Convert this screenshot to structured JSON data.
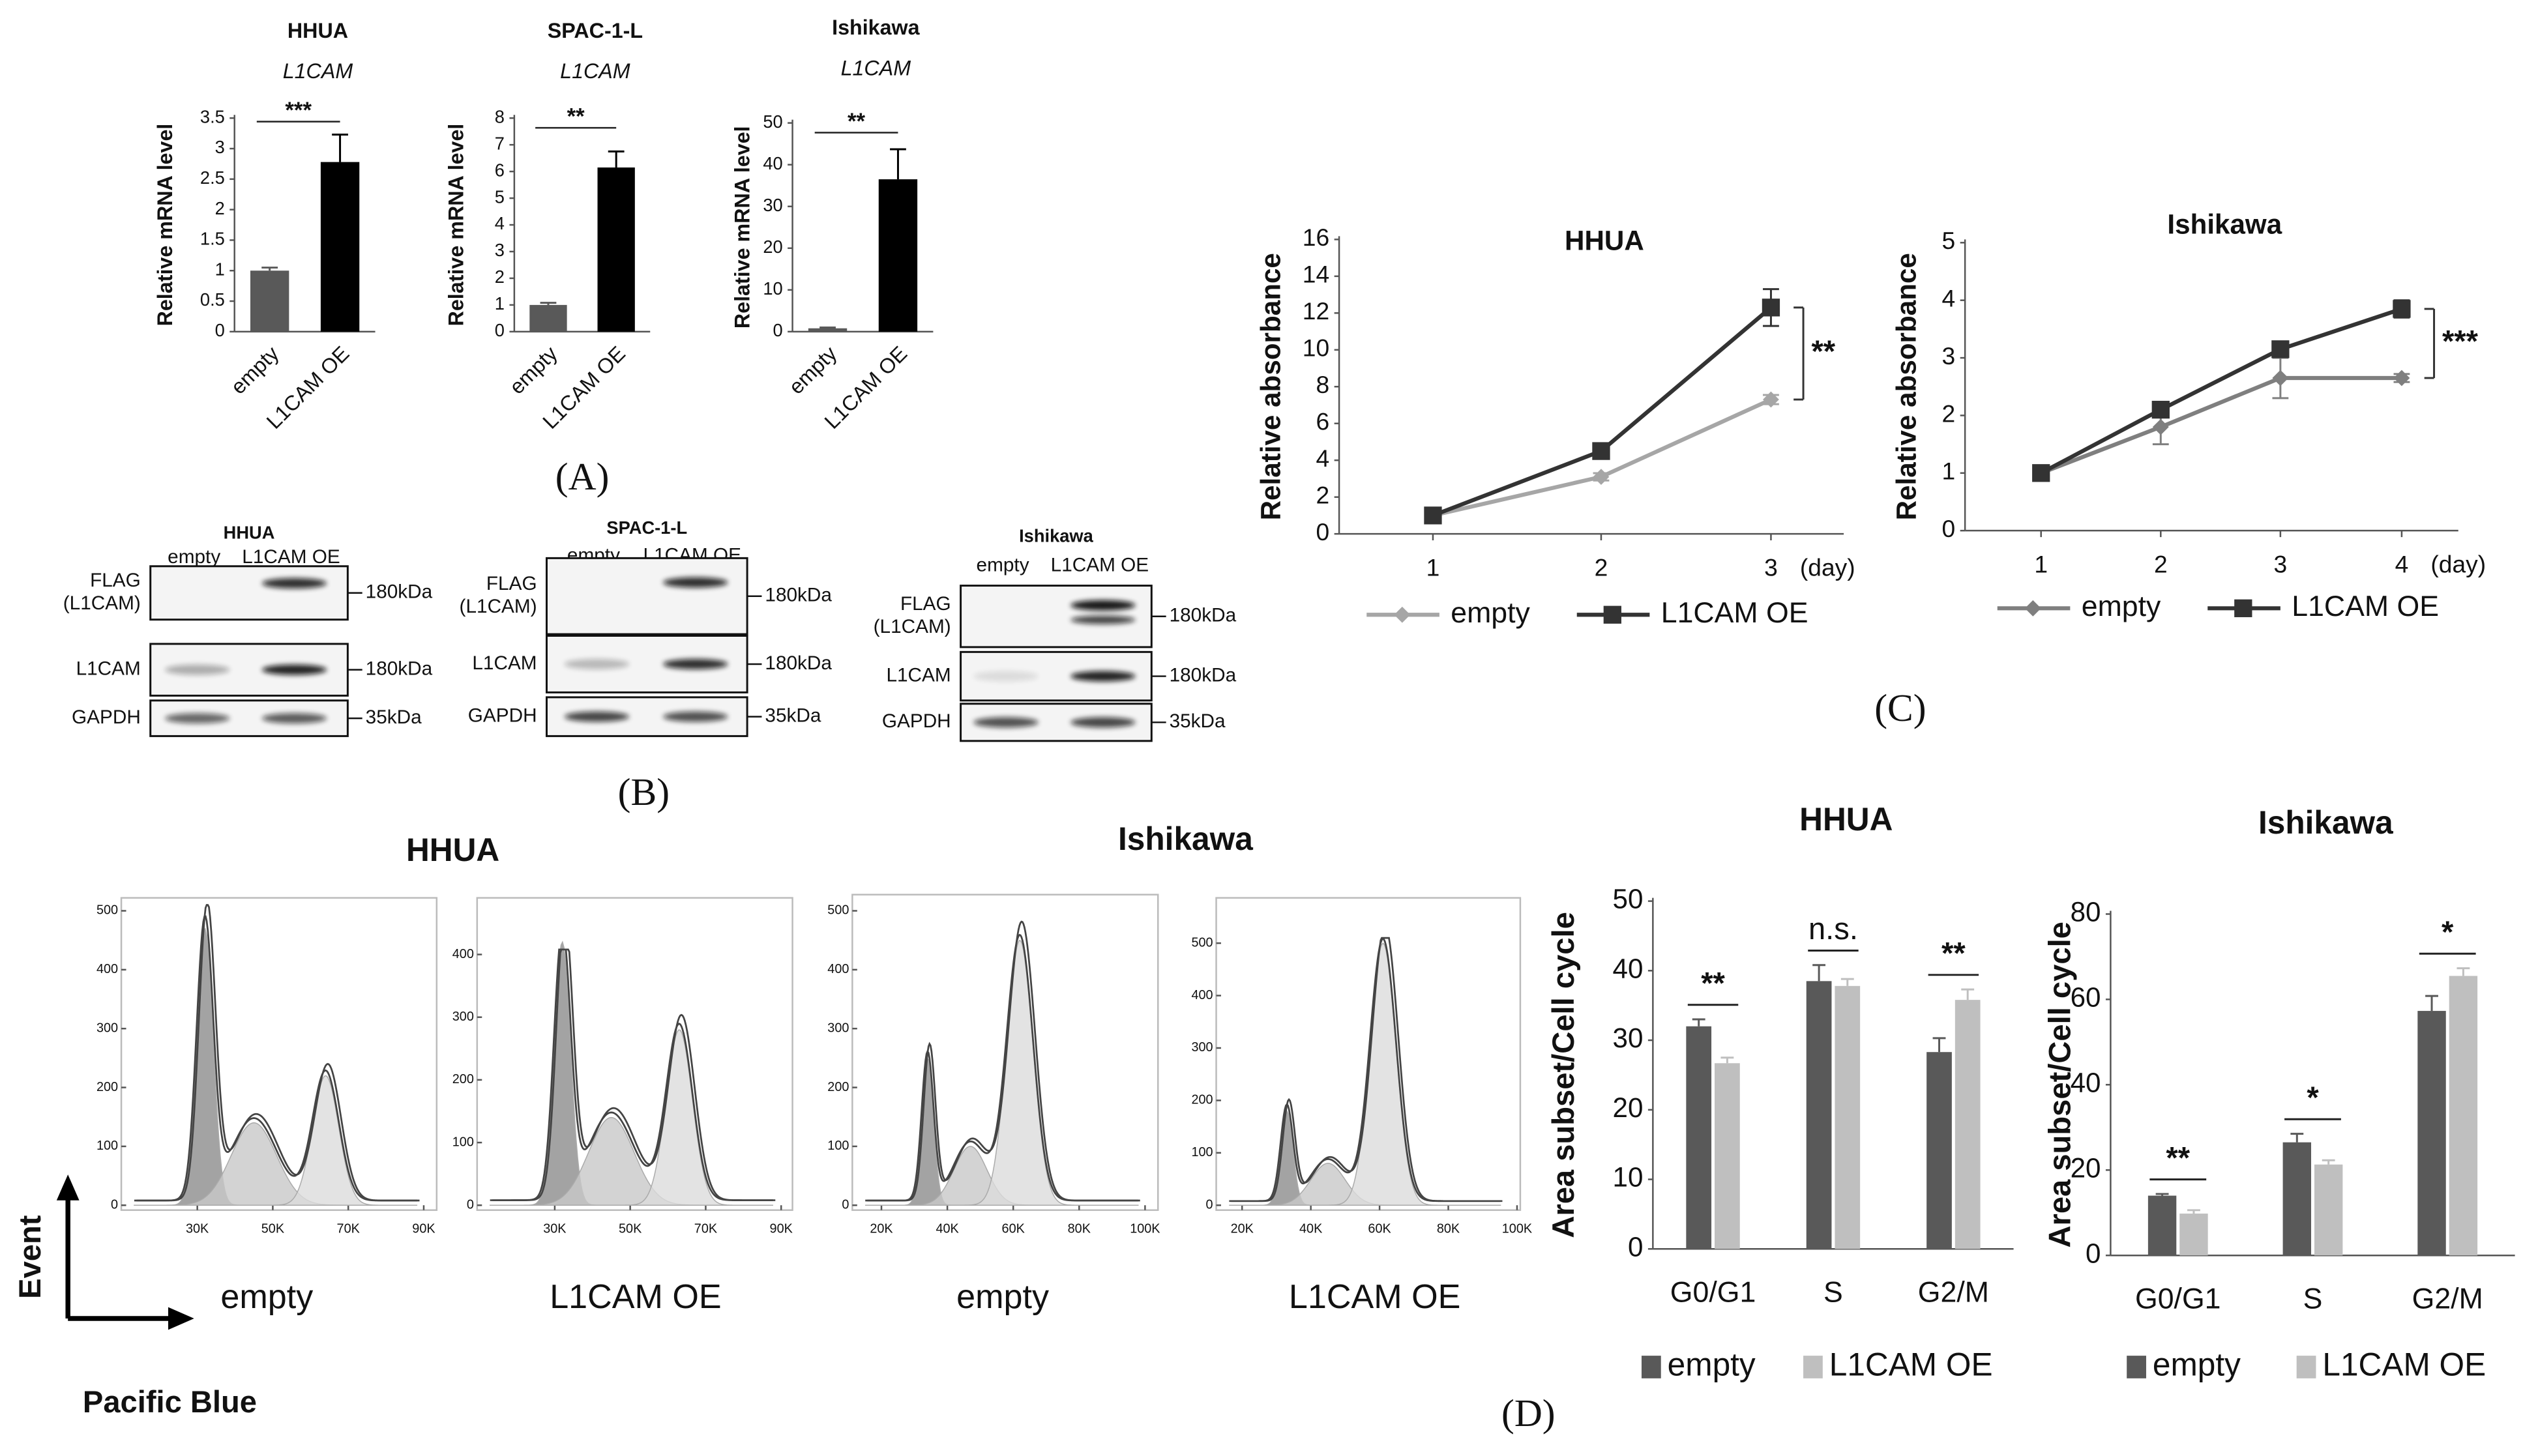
{
  "chart_data": [
    {
      "type": "bar",
      "title": "HHUA",
      "subtitle": "L1CAM",
      "ylabel": "Relative mRNA level",
      "categories": [
        "empty",
        "L1CAM OE"
      ],
      "values": [
        1,
        2.78
      ],
      "errors": [
        0.05,
        0.45
      ],
      "colors": [
        "#595959",
        "#000000"
      ],
      "ylim": [
        0,
        3.5
      ],
      "yticks": [
        0,
        0.5,
        1,
        1.5,
        2,
        2.5,
        3,
        3.5
      ],
      "annotations": [
        "***"
      ]
    },
    {
      "type": "bar",
      "title": "SPAC-1-L",
      "subtitle": "L1CAM",
      "ylabel": "Relative mRNA level",
      "categories": [
        "empty",
        "L1CAM OE"
      ],
      "values": [
        1,
        6.15
      ],
      "errors": [
        0.08,
        0.6
      ],
      "colors": [
        "#595959",
        "#000000"
      ],
      "ylim": [
        0,
        8
      ],
      "yticks": [
        0,
        1,
        2,
        3,
        4,
        5,
        6,
        7,
        8
      ],
      "annotations": [
        "**"
      ]
    },
    {
      "type": "bar",
      "title": "Ishikawa",
      "subtitle": "L1CAM",
      "ylabel": "Relative mRNA level",
      "categories": [
        "empty",
        "L1CAM OE"
      ],
      "values": [
        0.8,
        36.5
      ],
      "errors": [
        0.2,
        7.2
      ],
      "colors": [
        "#595959",
        "#000000"
      ],
      "ylim": [
        0,
        50
      ],
      "yticks": [
        0,
        10,
        20,
        30,
        40,
        50
      ],
      "annotations": [
        "**"
      ]
    },
    {
      "type": "line",
      "title": "HHUA",
      "ylabel": "Relative absorbance",
      "categories": [
        "1",
        "2",
        "3"
      ],
      "x_unit": "(day)",
      "ylim": [
        0,
        16
      ],
      "yticks": [
        0,
        2,
        4,
        6,
        8,
        10,
        12,
        14,
        16
      ],
      "series": [
        {
          "name": "empty",
          "color": "#a6a6a6",
          "marker": "diamond",
          "values": [
            1,
            3.1,
            7.3
          ],
          "errors": [
            0.1,
            0.2,
            0.25
          ]
        },
        {
          "name": "L1CAM OE",
          "color": "#333333",
          "marker": "square",
          "values": [
            1,
            4.5,
            12.3
          ],
          "errors": [
            0.1,
            0.2,
            1.0
          ]
        }
      ],
      "annotations": [
        "**"
      ]
    },
    {
      "type": "line",
      "title": "Ishikawa",
      "ylabel": "Relative absorbance",
      "categories": [
        "1",
        "2",
        "3",
        "4"
      ],
      "x_unit": "(day)",
      "ylim": [
        0,
        5
      ],
      "yticks": [
        0,
        1,
        2,
        3,
        4,
        5
      ],
      "series": [
        {
          "name": "empty",
          "color": "#7f7f7f",
          "marker": "diamond",
          "values": [
            1,
            1.8,
            2.65,
            2.65
          ],
          "errors": [
            0.05,
            0.3,
            0.35,
            0.07
          ]
        },
        {
          "name": "L1CAM OE",
          "color": "#333333",
          "marker": "square",
          "values": [
            1,
            2.1,
            3.15,
            3.85
          ],
          "errors": [
            0.05,
            0.07,
            0.07,
            0.15
          ]
        }
      ],
      "annotations": [
        "***"
      ]
    },
    {
      "type": "groupedbar",
      "title": "HHUA",
      "ylabel": "Area subset/Cell cycle",
      "categories": [
        "G0/G1",
        "S",
        "G2/M"
      ],
      "ylim": [
        0,
        50
      ],
      "yticks": [
        0,
        10,
        20,
        30,
        40,
        50
      ],
      "series": [
        {
          "name": "empty",
          "color": "#595959",
          "values": [
            32,
            38.5,
            28.3
          ],
          "errors": [
            1,
            2.3,
            2
          ]
        },
        {
          "name": "L1CAM OE",
          "color": "#bfbfbf",
          "values": [
            26.7,
            37.8,
            35.8
          ],
          "errors": [
            0.8,
            1,
            1.5
          ]
        }
      ],
      "annotations": [
        "**",
        "n.s.",
        "**"
      ]
    },
    {
      "type": "groupedbar",
      "title": "Ishikawa",
      "ylabel": "Area subset/Cell cycle",
      "categories": [
        "G0/G1",
        "S",
        "G2/M"
      ],
      "ylim": [
        0,
        80
      ],
      "yticks": [
        0,
        20,
        40,
        60,
        80
      ],
      "series": [
        {
          "name": "empty",
          "color": "#595959",
          "values": [
            14,
            26.5,
            57.3
          ],
          "errors": [
            0.4,
            2,
            3.5
          ]
        },
        {
          "name": "L1CAM OE",
          "color": "#bfbfbf",
          "values": [
            9.8,
            21.3,
            65.5
          ],
          "errors": [
            0.8,
            1,
            1.8
          ]
        }
      ],
      "annotations": [
        "**",
        "*",
        "*"
      ]
    }
  ],
  "panel_labels": [
    "(A)",
    "(B)",
    "(C)",
    "(D)"
  ],
  "blots": [
    {
      "title": "HHUA",
      "lanes": [
        "empty",
        "L1CAM OE"
      ],
      "rows": [
        {
          "label": [
            "FLAG",
            "(L1CAM)"
          ],
          "size": "180kDa"
        },
        {
          "label": [
            "L1CAM"
          ],
          "size": "180kDa"
        },
        {
          "label": [
            "GAPDH"
          ],
          "size": "35kDa"
        }
      ]
    },
    {
      "title": "SPAC-1-L",
      "lanes": [
        "empty",
        "L1CAM OE"
      ],
      "rows": [
        {
          "label": [
            "FLAG",
            "(L1CAM)"
          ],
          "size": "180kDa"
        },
        {
          "label": [
            "L1CAM"
          ],
          "size": "180kDa"
        },
        {
          "label": [
            "GAPDH"
          ],
          "size": "35kDa"
        }
      ]
    },
    {
      "title": "Ishikawa",
      "lanes": [
        "empty",
        "L1CAM OE"
      ],
      "rows": [
        {
          "label": [
            "FLAG",
            "(L1CAM)"
          ],
          "size": "180kDa"
        },
        {
          "label": [
            "L1CAM"
          ],
          "size": "180kDa"
        },
        {
          "label": [
            "GAPDH"
          ],
          "size": "35kDa"
        }
      ]
    }
  ],
  "flow": {
    "titles": [
      "HHUA",
      "Ishikawa"
    ],
    "y_axis_label": "Event",
    "x_axis_label": "Pacific Blue",
    "panels": [
      {
        "label": "empty",
        "yticks": [
          0,
          100,
          200,
          300,
          400,
          500
        ],
        "xticks": [
          {
            "value": 30000,
            "label": "30K"
          },
          {
            "value": 50000,
            "label": "50K"
          },
          {
            "value": 70000,
            "label": "70K"
          },
          {
            "value": 90000,
            "label": "90K"
          }
        ]
      },
      {
        "label": "L1CAM OE",
        "yticks": [
          0,
          100,
          200,
          300,
          400
        ],
        "xticks": [
          {
            "value": 30000,
            "label": "30K"
          },
          {
            "value": 50000,
            "label": "50K"
          },
          {
            "value": 70000,
            "label": "70K"
          },
          {
            "value": 90000,
            "label": "90K"
          }
        ]
      },
      {
        "label": "empty",
        "yticks": [
          0,
          100,
          200,
          300,
          400,
          500
        ],
        "xticks": [
          {
            "value": 20000,
            "label": "20K"
          },
          {
            "value": 40000,
            "label": "40K"
          },
          {
            "value": 60000,
            "label": "60K"
          },
          {
            "value": 80000,
            "label": "80K"
          },
          {
            "value": 100000,
            "label": "100K"
          }
        ]
      },
      {
        "label": "L1CAM OE",
        "yticks": [
          0,
          100,
          200,
          300,
          400,
          500
        ],
        "xticks": [
          {
            "value": 20000,
            "label": "20K"
          },
          {
            "value": 40000,
            "label": "40K"
          },
          {
            "value": 60000,
            "label": "60K"
          },
          {
            "value": 80000,
            "label": "80K"
          },
          {
            "value": 100000,
            "label": "100K"
          }
        ]
      }
    ]
  }
}
